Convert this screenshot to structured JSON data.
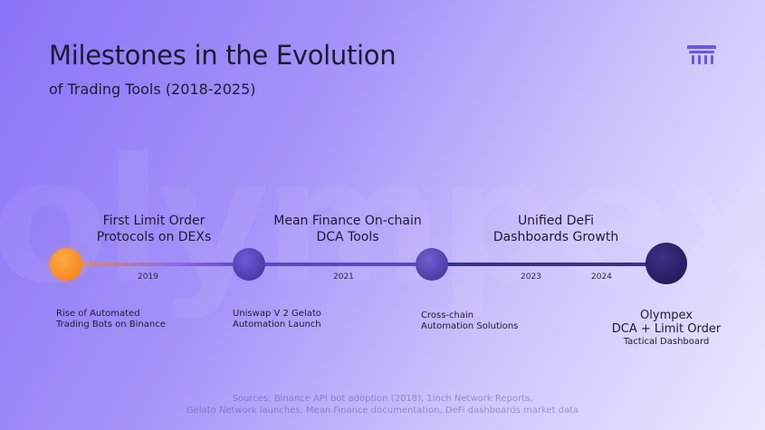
{
  "watermark": "olympex",
  "header": {
    "title": "Milestones in the Evolution",
    "subtitle": "of Trading Tools (2018-2025)"
  },
  "timeline": {
    "years": [
      "2019",
      "2021",
      "2023",
      "2024"
    ],
    "top_labels": [
      {
        "line1": "First Limit Order",
        "line2": "Protocols on DEXs"
      },
      {
        "line1": "Mean Finance On-chain",
        "line2": "DCA Tools"
      },
      {
        "line1": "Unified DeFi",
        "line2": "Dashboards Growth"
      }
    ],
    "bottom_labels": [
      {
        "line1": "Rise of Automated",
        "line2": "Trading Bots on Binance"
      },
      {
        "line1": "Uniswap V 2 Gelato",
        "line2": "Automation Launch"
      },
      {
        "line1": "Cross-chain",
        "line2": "Automation Solutions"
      }
    ],
    "final": {
      "line1": "Olympex",
      "line2": "DCA + Limit Order",
      "line3": "Tactical Dashboard"
    }
  },
  "sources": {
    "line1": "Sources: Binance API bot adoption (2018), 1inch Network Reports,",
    "line2": "Gelato Network launches, Mean Finance documentation, DeFi dashboards market data"
  },
  "colors": {
    "accent_orange": "#f7913a",
    "node_purple": "#4a3bb0",
    "final_node": "#241b5e",
    "logo": "#6a55e6"
  },
  "icons": {
    "logo": "olympex-pillar-icon"
  }
}
